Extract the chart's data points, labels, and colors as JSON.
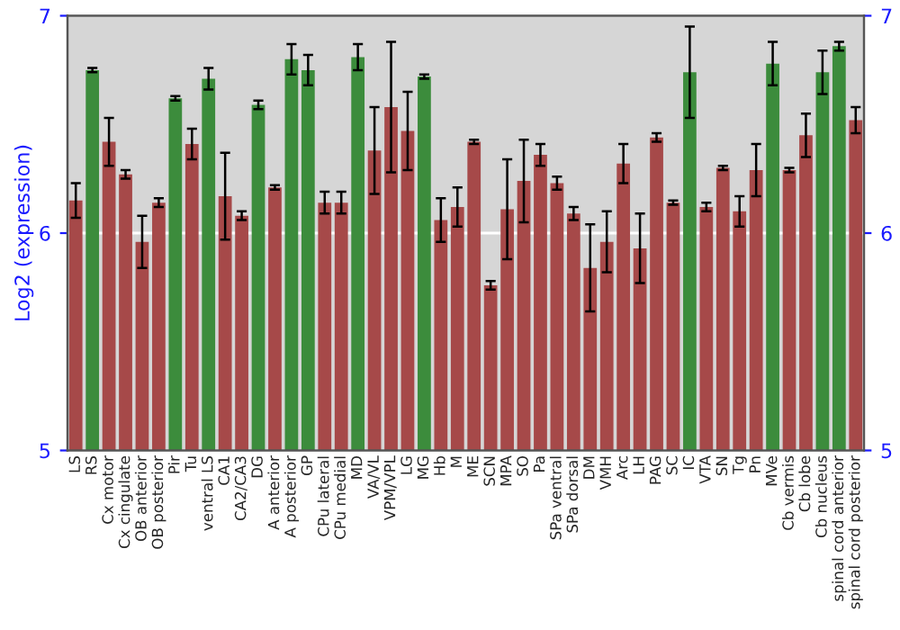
{
  "chart_data": {
    "type": "bar",
    "ylabel": "Log2 (expression)",
    "categories": [
      "LS",
      "RS",
      "Cx motor",
      "Cx cingulate",
      "OB anterior",
      "OB posterior",
      "Pir",
      "Tu",
      "ventral LS",
      "CA1",
      "CA2/CA3",
      "DG",
      "A anterior",
      "A posterior",
      "GP",
      "CPu lateral",
      "CPu medial",
      "MD",
      "VA/VL",
      "VPM/VPL",
      "LG",
      "MG",
      "Hb",
      "M",
      "ME",
      "SCN",
      "MPA",
      "SO",
      "Pa",
      "SPa ventral",
      "SPa dorsal",
      "DM",
      "VMH",
      "Arc",
      "LH",
      "PAG",
      "SC",
      "IC",
      "VTA",
      "SN",
      "Tg",
      "Pn",
      "MVe",
      "Cb vermis",
      "Cb lobe",
      "Cb nucleus",
      "spinal cord anterior",
      "spinal cord posterior"
    ],
    "values": [
      6.15,
      6.75,
      6.42,
      6.27,
      5.96,
      6.14,
      6.62,
      6.41,
      6.71,
      6.17,
      6.08,
      6.59,
      6.21,
      6.8,
      6.75,
      6.14,
      6.14,
      6.81,
      6.38,
      6.58,
      6.47,
      6.72,
      6.06,
      6.12,
      6.42,
      5.76,
      6.11,
      6.24,
      6.36,
      6.23,
      6.09,
      5.84,
      5.96,
      6.32,
      5.93,
      6.44,
      6.14,
      6.74,
      6.12,
      6.3,
      6.1,
      6.29,
      6.78,
      6.29,
      6.45,
      6.74,
      6.86,
      6.52
    ],
    "errors": [
      0.08,
      0.01,
      0.11,
      0.02,
      0.12,
      0.02,
      0.01,
      0.07,
      0.05,
      0.2,
      0.02,
      0.02,
      0.01,
      0.07,
      0.07,
      0.05,
      0.05,
      0.06,
      0.2,
      0.3,
      0.18,
      0.01,
      0.1,
      0.09,
      0.01,
      0.02,
      0.23,
      0.19,
      0.05,
      0.03,
      0.03,
      0.2,
      0.14,
      0.09,
      0.16,
      0.02,
      0.01,
      0.21,
      0.02,
      0.01,
      0.07,
      0.12,
      0.1,
      0.01,
      0.1,
      0.1,
      0.02,
      0.06
    ],
    "colors": [
      "#b53a3a",
      "#2e9a2e",
      "#b53a3a",
      "#b53a3a",
      "#b53a3a",
      "#b53a3a",
      "#2e9a2e",
      "#b53a3a",
      "#2e9a2e",
      "#b53a3a",
      "#b53a3a",
      "#2e9a2e",
      "#b53a3a",
      "#2e9a2e",
      "#2e9a2e",
      "#b53a3a",
      "#b53a3a",
      "#2e9a2e",
      "#b53a3a",
      "#b53a3a",
      "#b53a3a",
      "#2e9a2e",
      "#b53a3a",
      "#b53a3a",
      "#b53a3a",
      "#b53a3a",
      "#b53a3a",
      "#b53a3a",
      "#b53a3a",
      "#b53a3a",
      "#b53a3a",
      "#b53a3a",
      "#b53a3a",
      "#b53a3a",
      "#b53a3a",
      "#b53a3a",
      "#b53a3a",
      "#2e9a2e",
      "#b53a3a",
      "#b53a3a",
      "#b53a3a",
      "#b53a3a",
      "#2e9a2e",
      "#b53a3a",
      "#b53a3a",
      "#2e9a2e",
      "#2e9a2e",
      "#b53a3a"
    ],
    "ylim": [
      5,
      7
    ],
    "yticks": [
      5,
      6,
      7
    ],
    "y2lim": [
      5,
      7
    ],
    "y2ticks": [
      5,
      6,
      7
    ],
    "grid": "y"
  }
}
